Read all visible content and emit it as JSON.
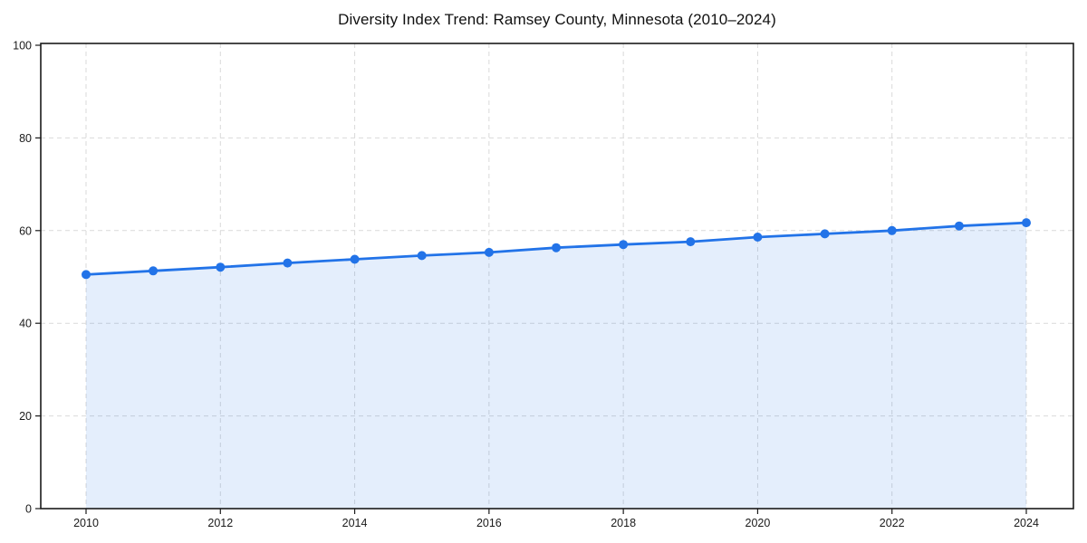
{
  "chart_data": {
    "type": "area",
    "title": "Diversity Index Trend: Ramsey County, Minnesota (2010–2024)",
    "x": [
      2010,
      2011,
      2012,
      2013,
      2014,
      2015,
      2016,
      2017,
      2018,
      2019,
      2020,
      2021,
      2022,
      2023,
      2024
    ],
    "series": [
      {
        "name": "Diversity Index",
        "values": [
          50.5,
          51.3,
          52.1,
          53.0,
          53.8,
          54.6,
          55.3,
          56.3,
          57.0,
          57.6,
          58.6,
          59.3,
          60.0,
          61.0,
          61.7
        ]
      }
    ],
    "xlabel": "",
    "ylabel": "",
    "xlim": [
      2009.33,
      2024.7
    ],
    "ylim": [
      0,
      100
    ],
    "x_ticks": [
      2010,
      2012,
      2014,
      2016,
      2018,
      2020,
      2022,
      2024
    ],
    "x_tick_labels": [
      "2010",
      "2012",
      "2014",
      "2016",
      "2018",
      "2020",
      "2022",
      "2024"
    ],
    "y_ticks": [
      0,
      20,
      40,
      60,
      80,
      100
    ],
    "y_tick_labels": [
      "0",
      "20",
      "40",
      "60",
      "80",
      "100"
    ],
    "grid": "dashed-both",
    "legend": "none",
    "marker": "circle",
    "colors": {
      "line": "#2273e8",
      "fill": "rgba(34, 115, 232, 0.12)",
      "grid": "#d9d9d9",
      "spine": "#1a1a1a",
      "tick_text": "#1a1a1a",
      "title_text": "#111111",
      "background": "#ffffff"
    }
  }
}
